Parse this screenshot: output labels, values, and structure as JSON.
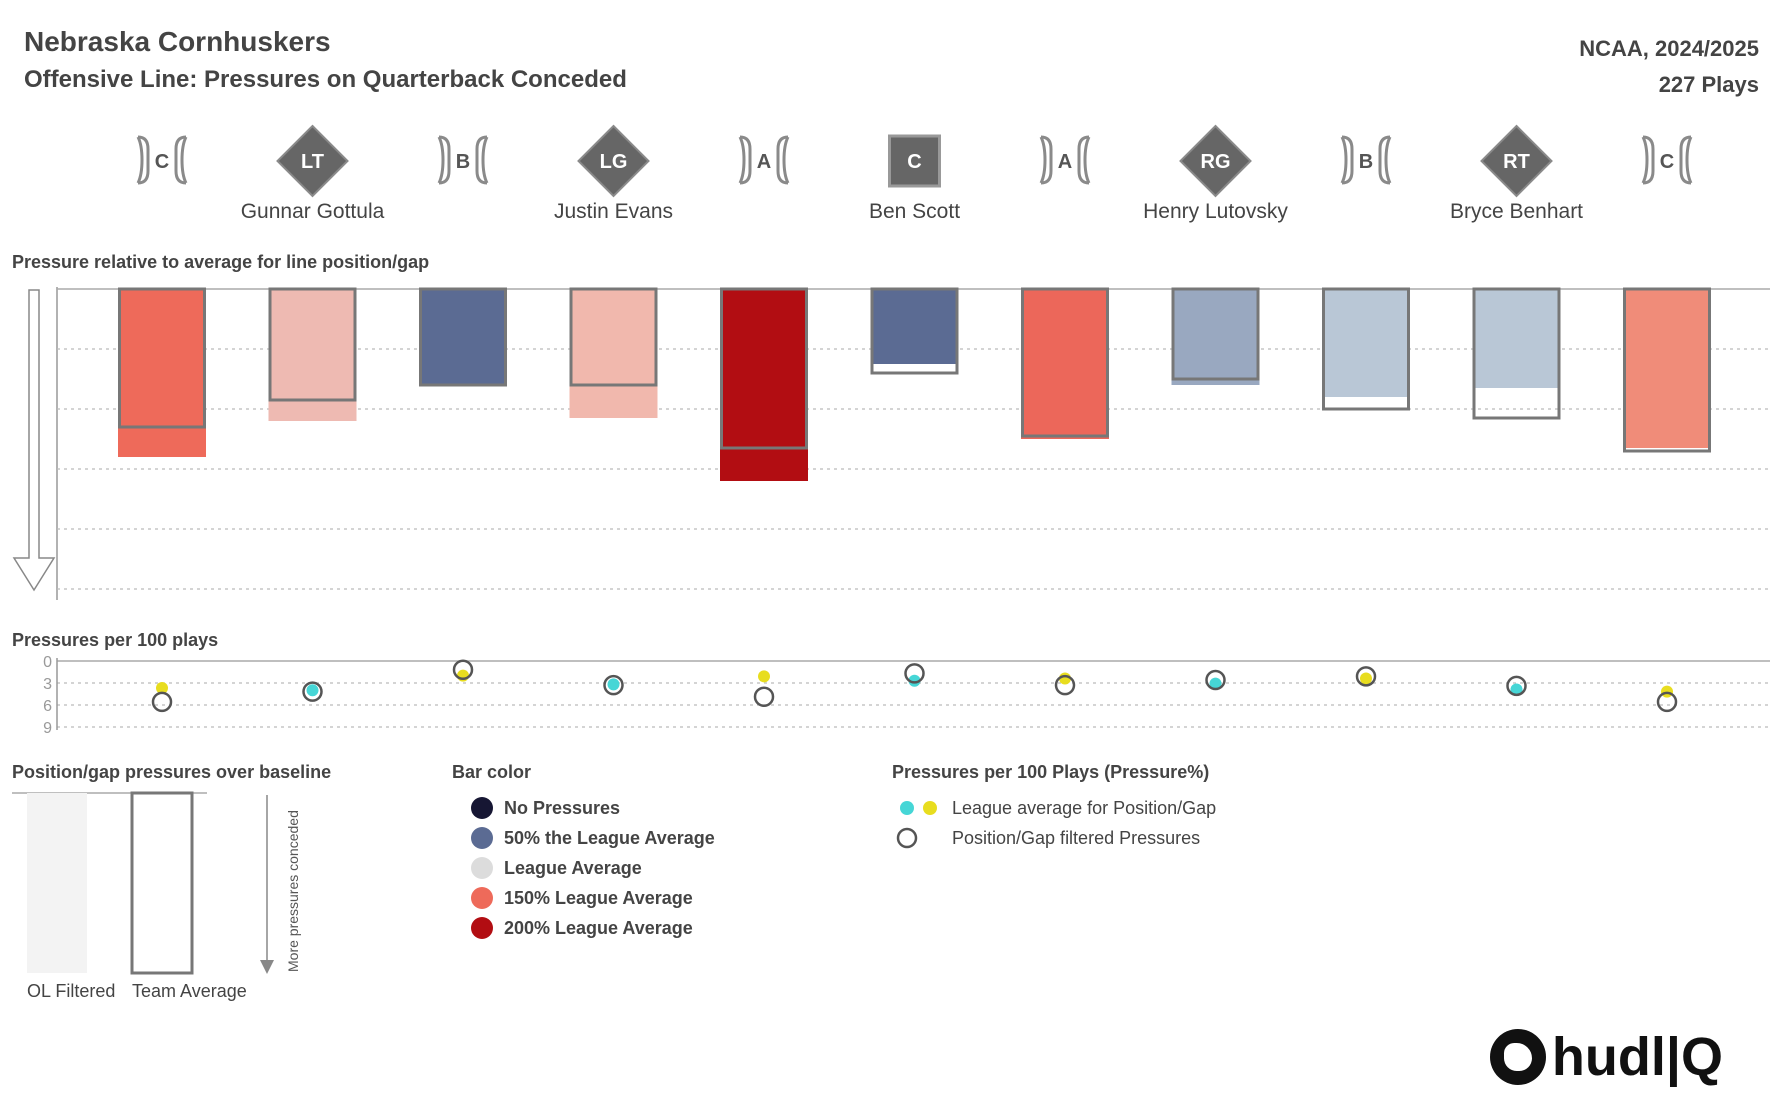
{
  "header": {
    "title": "Nebraska Cornhuskers",
    "subtitle": "Offensive Line: Pressures on Quarterback Conceded",
    "league": "NCAA, 2024/2025",
    "plays": "227 Plays"
  },
  "line": [
    {
      "kind": "gap",
      "label": "C"
    },
    {
      "kind": "player",
      "pos": "LT",
      "name": "Gunnar Gottula"
    },
    {
      "kind": "gap",
      "label": "B"
    },
    {
      "kind": "player",
      "pos": "LG",
      "name": "Justin Evans"
    },
    {
      "kind": "gap",
      "label": "A"
    },
    {
      "kind": "center",
      "pos": "C",
      "name": "Ben Scott"
    },
    {
      "kind": "gap",
      "label": "A"
    },
    {
      "kind": "player",
      "pos": "RG",
      "name": "Henry Lutovsky"
    },
    {
      "kind": "gap",
      "label": "B"
    },
    {
      "kind": "player",
      "pos": "RT",
      "name": "Bryce Benhart"
    },
    {
      "kind": "gap",
      "label": "C"
    }
  ],
  "chart_data": [
    {
      "type": "bar",
      "title": "Pressure relative to average for line position/gap",
      "categories": [
        "Left C gap",
        "LT",
        "Left B gap",
        "LG",
        "Left A gap",
        "C",
        "Right A gap",
        "RG",
        "Right B gap",
        "RT",
        "Right C gap"
      ],
      "series": [
        {
          "name": "OL Filtered",
          "values": [
            5.6,
            4.4,
            3.2,
            4.3,
            6.4,
            2.5,
            5.0,
            3.2,
            3.6,
            3.3,
            5.3
          ]
        },
        {
          "name": "Team Average",
          "values": [
            4.6,
            3.7,
            3.2,
            3.2,
            5.3,
            2.8,
            4.9,
            3.0,
            4.0,
            4.3,
            5.4
          ]
        }
      ],
      "bar_colors": [
        "#ee6a5a",
        "#eebab2",
        "#5b6b93",
        "#f1b8ad",
        "#b20d12",
        "#5b6b93",
        "#ec675a",
        "#99a8c0",
        "#b9c7d6",
        "#b9c7d6",
        "#f08c79"
      ],
      "ylim": [
        0,
        10
      ],
      "ylabel": "",
      "grid": true
    },
    {
      "type": "scatter",
      "title": "Pressures per 100 plays",
      "categories": [
        "Left C gap",
        "LT",
        "Left B gap",
        "LG",
        "Left A gap",
        "C",
        "Right A gap",
        "RG",
        "Right B gap",
        "RT",
        "Right C gap"
      ],
      "yticks": [
        "0",
        "3",
        "6",
        "9"
      ],
      "ylim": [
        0,
        9
      ],
      "series": [
        {
          "name": "League average for Position/Gap",
          "values": [
            3.7,
            4.0,
            2.0,
            3.2,
            2.1,
            2.7,
            2.4,
            3.1,
            2.4,
            3.9,
            4.2
          ],
          "colors": [
            "#e8dd1f",
            "#46d6d6",
            "#e8dd1f",
            "#46d6d6",
            "#e8dd1f",
            "#46d6d6",
            "#e8dd1f",
            "#46d6d6",
            "#e8dd1f",
            "#46d6d6",
            "#e8dd1f"
          ]
        },
        {
          "name": "Position/Gap filtered Pressures",
          "values": [
            5.6,
            4.2,
            1.2,
            3.3,
            4.9,
            1.7,
            3.3,
            2.6,
            2.1,
            3.4,
            5.6
          ]
        }
      ]
    }
  ],
  "legend": {
    "baseline": {
      "title": "Position/gap pressures over baseline",
      "ol_label": "OL Filtered",
      "team_label": "Team Average",
      "arrow_label": "More pressures conceded"
    },
    "bar_color": {
      "title": "Bar color",
      "items": [
        {
          "label": "No Pressures",
          "color": "#161633"
        },
        {
          "label": "50% the League Average",
          "color": "#5b6b93"
        },
        {
          "label": "League Average",
          "color": "#dcdcdc"
        },
        {
          "label": "150% League Average",
          "color": "#ee6a5a"
        },
        {
          "label": "200% League Average",
          "color": "#b20d12"
        }
      ]
    },
    "pressures": {
      "title": "Pressures per 100 Plays (Pressure%)",
      "league_label": "League average for Position/Gap",
      "filtered_label": "Position/Gap filtered Pressures",
      "league_colors": [
        "#46d6d6",
        "#e8dd1f"
      ]
    }
  },
  "logo": {
    "text": "hudl|Q"
  }
}
